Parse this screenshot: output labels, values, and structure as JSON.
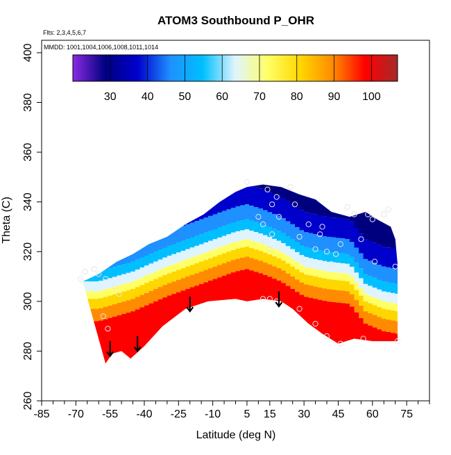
{
  "chart_data": {
    "type": "heatmap",
    "title": "ATOM3 Southbound P_OHR",
    "annotation_flights": "Flts: 2,3,4,5,6,7",
    "annotation_dates": "MMDD: 1001,1004,1006,1008,1011,1014",
    "xlabel": "Latitude (deg N)",
    "ylabel": "Theta (C)",
    "xlim": [
      -85,
      85
    ],
    "ylim": [
      260,
      405
    ],
    "x_ticks": [
      -85,
      -70,
      -55,
      -40,
      -25,
      -10,
      5,
      15,
      30,
      45,
      60,
      75
    ],
    "x_tick_labels": [
      "-85",
      "-70",
      "-55",
      "-40",
      "-25",
      "-10",
      "5",
      "15",
      "30",
      "45",
      "60",
      "75"
    ],
    "y_ticks": [
      260,
      280,
      300,
      320,
      340,
      360,
      380,
      400
    ],
    "y_tick_labels": [
      "260",
      "280",
      "300",
      "320",
      "340",
      "360",
      "380",
      "400"
    ],
    "colorbar": {
      "range": [
        20,
        107
      ],
      "ticks": [
        30,
        40,
        50,
        60,
        70,
        80,
        90,
        100
      ],
      "tick_labels": [
        "30",
        "40",
        "50",
        "60",
        "70",
        "80",
        "90",
        "100"
      ],
      "colors": [
        "#8a2be2",
        "#00007f",
        "#0000cd",
        "#1e90ff",
        "#00bfff",
        "#e0f4ff",
        "#ffff66",
        "#ffd700",
        "#ff8c00",
        "#ff0000",
        "#a52a2a"
      ]
    },
    "domain_top": [
      [
        -67,
        308
      ],
      [
        -60,
        311
      ],
      [
        -52,
        316
      ],
      [
        -45,
        319
      ],
      [
        -38,
        323
      ],
      [
        -30,
        326
      ],
      [
        -22,
        331
      ],
      [
        -14,
        335
      ],
      [
        -7,
        340
      ],
      [
        0,
        344
      ],
      [
        5,
        346
      ],
      [
        12,
        347
      ],
      [
        20,
        346
      ],
      [
        28,
        343
      ],
      [
        35,
        341
      ],
      [
        42,
        336
      ],
      [
        50,
        334
      ],
      [
        57,
        336
      ],
      [
        62,
        333
      ],
      [
        68,
        330
      ],
      [
        70,
        325
      ],
      [
        71,
        315
      ]
    ],
    "domain_bottom": [
      [
        -57,
        275
      ],
      [
        -54,
        279
      ],
      [
        -50,
        280
      ],
      [
        -46,
        277
      ],
      [
        -40,
        282
      ],
      [
        -32,
        290
      ],
      [
        -22,
        297
      ],
      [
        -12,
        300
      ],
      [
        0,
        301
      ],
      [
        5,
        300
      ],
      [
        12,
        301
      ],
      [
        20,
        300
      ],
      [
        25,
        297
      ],
      [
        32,
        291
      ],
      [
        38,
        287
      ],
      [
        45,
        283
      ],
      [
        52,
        285
      ],
      [
        60,
        284
      ],
      [
        71,
        284
      ]
    ],
    "isotherm_ridge": [
      [
        -60,
        306
      ],
      [
        -45,
        310
      ],
      [
        -30,
        316
      ],
      [
        -15,
        321
      ],
      [
        0,
        326
      ],
      [
        5,
        327
      ],
      [
        12,
        325
      ],
      [
        20,
        322
      ],
      [
        30,
        316
      ],
      [
        40,
        314
      ],
      [
        50,
        313
      ],
      [
        57,
        305
      ],
      [
        65,
        302
      ],
      [
        71,
        301
      ]
    ],
    "observations": [
      [
        -68,
        309
      ],
      [
        -66,
        312
      ],
      [
        -62,
        313
      ],
      [
        -60,
        311
      ],
      [
        -57,
        309
      ],
      [
        -53,
        306
      ],
      [
        -51,
        303
      ],
      [
        -58,
        294
      ],
      [
        -56,
        289
      ],
      [
        5,
        348
      ],
      [
        10,
        334
      ],
      [
        12,
        331
      ],
      [
        14,
        345
      ],
      [
        16,
        339
      ],
      [
        18,
        342
      ],
      [
        19,
        334
      ],
      [
        13,
        324
      ],
      [
        15,
        321
      ],
      [
        16,
        327
      ],
      [
        24,
        346
      ],
      [
        26,
        339
      ],
      [
        28,
        326
      ],
      [
        30,
        317
      ],
      [
        32,
        331
      ],
      [
        35,
        321
      ],
      [
        37,
        327
      ],
      [
        38,
        330
      ],
      [
        40,
        320
      ],
      [
        42,
        315
      ],
      [
        44,
        319
      ],
      [
        46,
        323
      ],
      [
        49,
        338
      ],
      [
        52,
        335
      ],
      [
        55,
        325
      ],
      [
        58,
        335
      ],
      [
        60,
        333
      ],
      [
        61,
        316
      ],
      [
        65,
        335
      ],
      [
        67,
        337
      ],
      [
        70,
        314
      ],
      [
        12,
        301
      ],
      [
        15,
        301
      ],
      [
        18,
        300
      ],
      [
        28,
        297
      ],
      [
        35,
        291
      ],
      [
        40,
        286
      ],
      [
        46,
        283
      ],
      [
        56,
        285
      ],
      [
        71,
        284
      ]
    ],
    "arrows": [
      {
        "x": -55,
        "y_start": 284,
        "y_end": 278
      },
      {
        "x": -43,
        "y_start": 286,
        "y_end": 280
      },
      {
        "x": -20,
        "y_start": 302,
        "y_end": 296
      },
      {
        "x": 19,
        "y_start": 304,
        "y_end": 298
      }
    ]
  }
}
